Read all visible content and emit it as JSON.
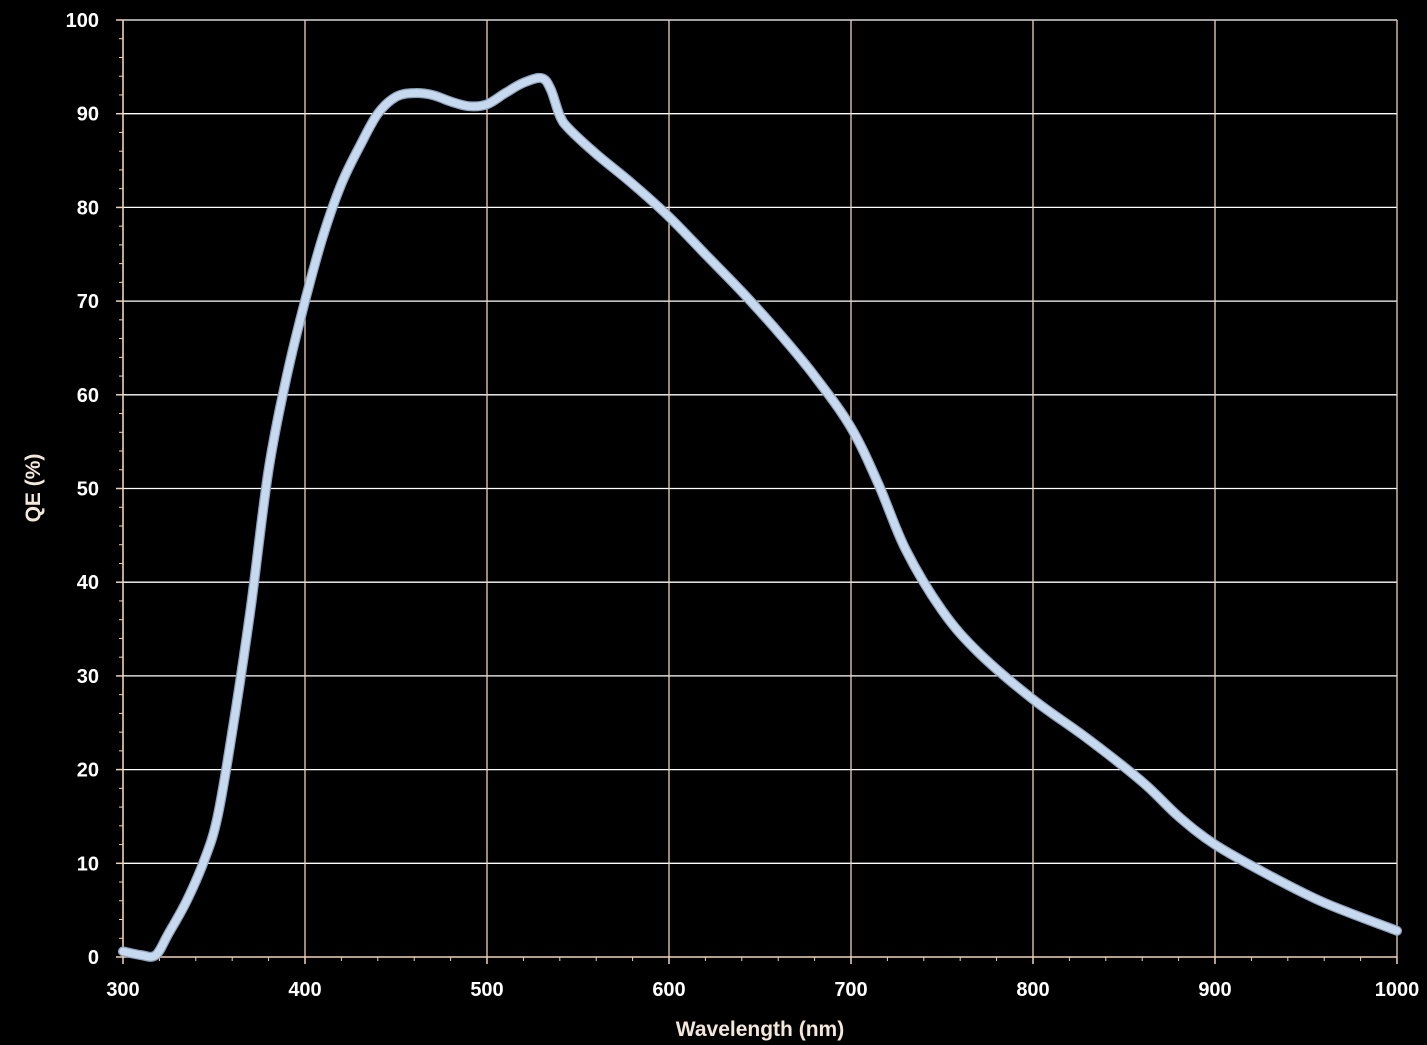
{
  "chart_data": {
    "type": "line",
    "title": "",
    "xlabel": "Wavelength (nm)",
    "ylabel": "QE (%)",
    "xlim": [
      300,
      1000
    ],
    "ylim": [
      0,
      100
    ],
    "x_ticks": [
      "300",
      "400",
      "500",
      "600",
      "700",
      "800",
      "900",
      "1000"
    ],
    "y_ticks": [
      "0",
      "10",
      "20",
      "30",
      "40",
      "50",
      "60",
      "70",
      "80",
      "90",
      "100"
    ],
    "grid": true,
    "legend": "none",
    "colors": {
      "background": "#000000",
      "grid": "#ffffff",
      "axis": "#f1d2b8",
      "line": "#c6d9ef",
      "line_outline": "#8ea3bd",
      "tick_text": "#ffffff",
      "title_text": "#f3e7da"
    },
    "series": [
      {
        "x": [
          300,
          310,
          318,
          325,
          335,
          345,
          352,
          360,
          370,
          380,
          390,
          400,
          410,
          420,
          430,
          440,
          450,
          460,
          470,
          480,
          490,
          500,
          510,
          520,
          530,
          535,
          540,
          545,
          560,
          580,
          600,
          620,
          640,
          660,
          680,
          700,
          715,
          730,
          750,
          770,
          800,
          830,
          860,
          880,
          900,
          930,
          960,
          1000
        ],
        "y": [
          0.6,
          0.2,
          0.2,
          2.5,
          6,
          10.5,
          15,
          24,
          37,
          52,
          62,
          70,
          77,
          82.5,
          86.5,
          90,
          91.8,
          92.2,
          92,
          91.3,
          90.8,
          91,
          92.2,
          93.3,
          93.8,
          92.6,
          89.8,
          88.4,
          85.7,
          82.5,
          79,
          75,
          71,
          66.7,
          62,
          56.5,
          50.5,
          43.5,
          37,
          32.5,
          27.5,
          23.3,
          18.7,
          15,
          12,
          8.7,
          5.8,
          2.8
        ]
      }
    ]
  }
}
